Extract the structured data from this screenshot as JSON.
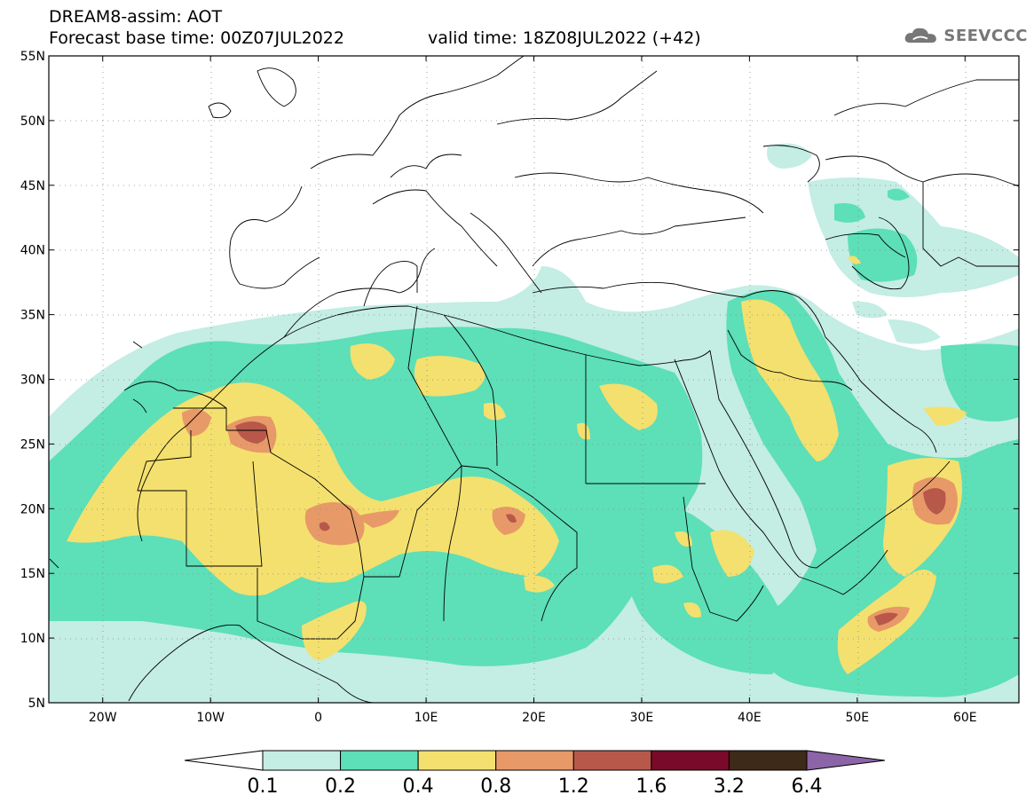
{
  "header": {
    "title_line1": "DREAM8-assim: AOT",
    "title_line2": "Forecast base time: 00Z07JUL2022",
    "valid_time": "valid time: 18Z08JUL2022 (+42)",
    "logo_text": "SEEVCCC",
    "logo_icon": "cloud-icon"
  },
  "map": {
    "lat_labels": [
      "55N",
      "50N",
      "45N",
      "40N",
      "35N",
      "30N",
      "25N",
      "20N",
      "15N",
      "10N",
      "5N"
    ],
    "lon_labels": [
      "20W",
      "10W",
      "0",
      "10E",
      "20E",
      "30E",
      "40E",
      "50E",
      "60E"
    ],
    "lat_range": [
      5,
      55
    ],
    "lon_range": [
      -25,
      65
    ]
  },
  "colorbar": {
    "labels": [
      "0.1",
      "0.2",
      "0.4",
      "0.8",
      "1.2",
      "1.6",
      "3.2",
      "6.4"
    ],
    "colors": [
      "#ffffff",
      "#c4ede4",
      "#5ddfb8",
      "#f4e06e",
      "#e89968",
      "#b8584a",
      "#7a0a2a",
      "#3e2a18",
      "#8c64a8"
    ]
  }
}
